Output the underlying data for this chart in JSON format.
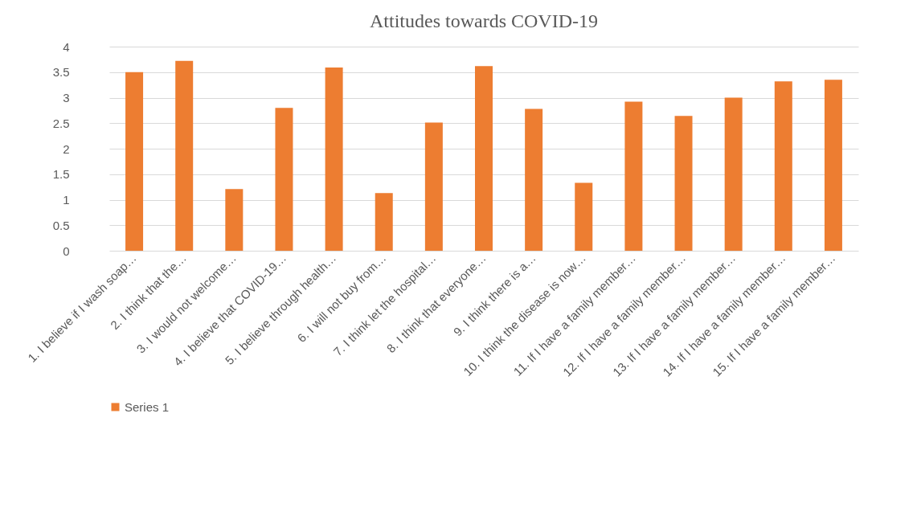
{
  "chart_data": {
    "type": "bar",
    "title": "Attitudes towards COVID-19",
    "categories": [
      "1.     I believe if I wash soap…",
      "2.     I think that the…",
      "3.     I would not welcome…",
      "4.     I believe that COVID-19…",
      "5.     I believe through health…",
      "6.     I will not buy from…",
      "7.     I think let the hospital…",
      "8.     I think that everyone…",
      "9.     I think there is a…",
      "10.  I think the disease is now…",
      "11.  If I have a family member…",
      "12.  If I have a family member…",
      "13.  If I have a family member…",
      "14.  If I have a family member…",
      "15.  If I have a family member…"
    ],
    "series": [
      {
        "name": "Series 1",
        "color": "#ed7d31",
        "values": [
          3.5,
          3.72,
          1.21,
          2.8,
          3.59,
          1.13,
          2.51,
          3.62,
          2.78,
          1.33,
          2.92,
          2.64,
          3.0,
          3.32,
          3.35
        ]
      }
    ],
    "ylim": [
      0,
      4
    ],
    "yticks": [
      0,
      0.5,
      1,
      1.5,
      2,
      2.5,
      3,
      3.5,
      4
    ],
    "grid": "y",
    "legend": "bottom"
  }
}
